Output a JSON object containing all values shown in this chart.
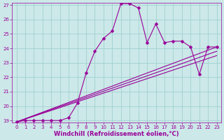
{
  "xlabel": "Windchill (Refroidissement éolien,°C)",
  "xlim": [
    -0.5,
    23.5
  ],
  "ylim": [
    18.85,
    27.15
  ],
  "yticks": [
    19,
    20,
    21,
    22,
    23,
    24,
    25,
    26,
    27
  ],
  "xticks": [
    0,
    1,
    2,
    3,
    4,
    5,
    6,
    7,
    8,
    9,
    10,
    11,
    12,
    13,
    14,
    15,
    16,
    17,
    18,
    19,
    20,
    21,
    22,
    23
  ],
  "bg_color": "#cce8e8",
  "line_color": "#990099",
  "grid_color": "#99cccc",
  "series": [
    {
      "x": [
        0,
        1,
        2,
        3,
        4,
        5,
        6,
        7,
        8,
        9,
        10,
        11,
        12,
        13,
        14,
        15,
        16,
        17,
        18,
        19,
        20,
        21,
        22,
        23
      ],
      "y": [
        18.9,
        19.0,
        19.0,
        19.0,
        19.0,
        19.0,
        19.2,
        20.2,
        22.3,
        23.8,
        24.7,
        25.2,
        27.1,
        27.1,
        26.8,
        24.4,
        25.7,
        24.4,
        24.5,
        24.5,
        24.1,
        22.2,
        24.1,
        24.1
      ],
      "marker": "D",
      "markersize": 2.5,
      "linewidth": 0.8
    },
    {
      "x": [
        0,
        23
      ],
      "y": [
        18.9,
        24.1
      ],
      "marker": null,
      "markersize": 0,
      "linewidth": 0.8
    },
    {
      "x": [
        0,
        23
      ],
      "y": [
        18.9,
        23.8
      ],
      "marker": null,
      "markersize": 0,
      "linewidth": 0.8
    },
    {
      "x": [
        0,
        23
      ],
      "y": [
        18.9,
        23.5
      ],
      "marker": null,
      "markersize": 0,
      "linewidth": 0.8
    }
  ],
  "tick_fontsize": 5,
  "xlabel_fontsize": 6,
  "figwidth": 3.2,
  "figheight": 2.0,
  "dpi": 100
}
